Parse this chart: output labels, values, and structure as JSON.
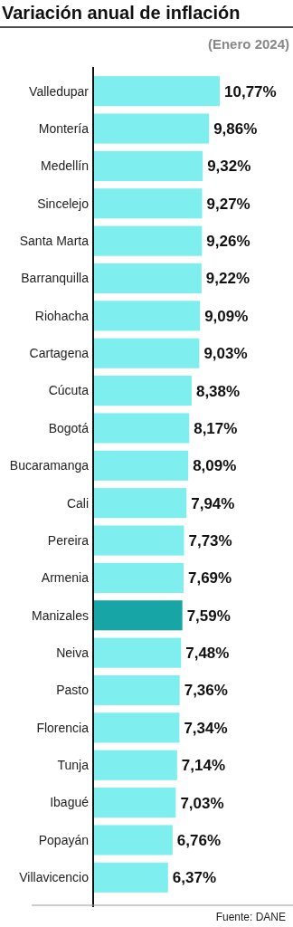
{
  "chart_data": {
    "type": "bar",
    "orientation": "horizontal",
    "title": "Variación anual de inflación",
    "subtitle": "(Enero 2024)",
    "annotations": [
      "Fuente: DANE"
    ],
    "categories": [
      "Valledupar",
      "Montería",
      "Medellín",
      "Sincelejo",
      "Santa Marta",
      "Barranquilla",
      "Riohacha",
      "Cartagena",
      "Cúcuta",
      "Bogotá",
      "Bucaramanga",
      "Cali",
      "Pereira",
      "Armenia",
      "Manizales",
      "Neiva",
      "Pasto",
      "Florencia",
      "Tunja",
      "Ibagué",
      "Popayán",
      "Villavicencio"
    ],
    "values": [
      10.77,
      9.86,
      9.32,
      9.27,
      9.26,
      9.22,
      9.09,
      9.03,
      8.38,
      8.17,
      8.09,
      7.94,
      7.73,
      7.69,
      7.59,
      7.48,
      7.36,
      7.34,
      7.14,
      7.03,
      6.76,
      6.37
    ],
    "value_labels": [
      "10,77%",
      "9,86%",
      "9,32%",
      "9,27%",
      "9,26%",
      "9,22%",
      "9,09%",
      "9,03%",
      "8,38%",
      "8,17%",
      "8,09%",
      "7,94%",
      "7,73%",
      "7,69%",
      "7,59%",
      "7,48%",
      "7,36%",
      "7,34%",
      "7,14%",
      "7,03%",
      "6,76%",
      "6,37%"
    ],
    "colors": [
      "#7eeeee",
      "#7eeeee",
      "#7eeeee",
      "#7eeeee",
      "#7eeeee",
      "#7eeeee",
      "#7eeeee",
      "#7eeeee",
      "#7eeeee",
      "#7eeeee",
      "#7eeeee",
      "#7eeeee",
      "#7eeeee",
      "#7eeeee",
      "#17a5a5",
      "#7eeeee",
      "#7eeeee",
      "#7eeeee",
      "#7eeeee",
      "#7eeeee",
      "#7eeeee",
      "#7eeeee"
    ],
    "grid": false
  }
}
